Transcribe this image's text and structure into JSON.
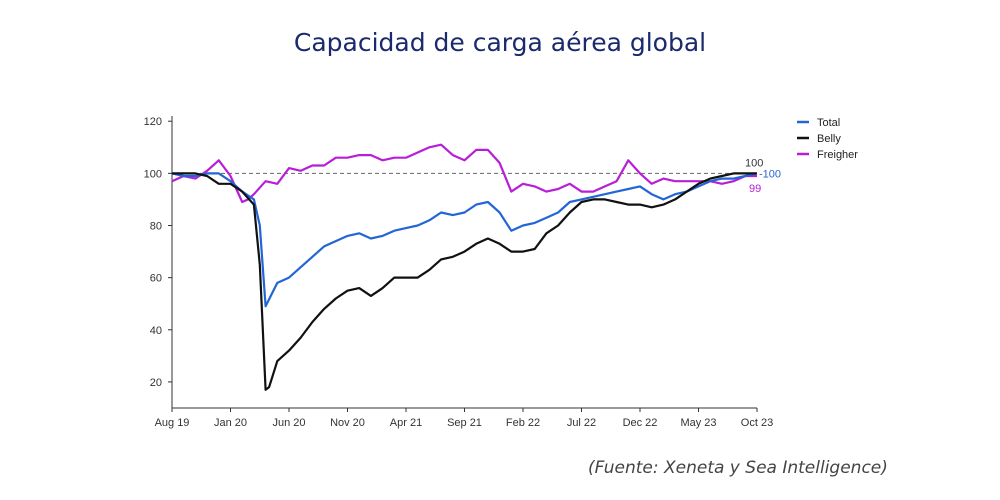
{
  "chart_data": {
    "type": "line",
    "title": "Capacidad de carga aérea global",
    "xlabel": "",
    "ylabel": "",
    "ylim": [
      10,
      122
    ],
    "yticks": [
      20,
      40,
      60,
      80,
      100,
      120
    ],
    "x_tick_labels": [
      "Aug 19",
      "Jan 20",
      "Jun 20",
      "Nov 20",
      "Apr 21",
      "Sep 21",
      "Feb 22",
      "Jul 22",
      "Dec 22",
      "May 23",
      "Oct 23"
    ],
    "x_tick_months": [
      0,
      5,
      10,
      15,
      20,
      25,
      30,
      35,
      40,
      45,
      50
    ],
    "reference_line": 100,
    "grid": false,
    "legend_position": "top-right",
    "series": [
      {
        "name": "Total",
        "color": "#2266d6",
        "x": [
          0,
          1,
          2,
          3,
          4,
          5,
          6,
          7,
          7.5,
          8,
          9,
          10,
          11,
          12,
          13,
          14,
          15,
          16,
          17,
          18,
          19,
          20,
          21,
          22,
          23,
          24,
          25,
          26,
          27,
          28,
          29,
          30,
          31,
          32,
          33,
          34,
          35,
          36,
          37,
          38,
          39,
          40,
          41,
          42,
          43,
          44,
          45,
          46,
          47,
          48,
          49,
          50
        ],
        "values": [
          100,
          99,
          99,
          100,
          100,
          97,
          93,
          90,
          80,
          49,
          58,
          60,
          64,
          68,
          72,
          74,
          76,
          77,
          75,
          76,
          78,
          79,
          80,
          82,
          85,
          84,
          85,
          88,
          89,
          85,
          78,
          80,
          81,
          83,
          85,
          89,
          90,
          91,
          92,
          93,
          94,
          95,
          92,
          90,
          92,
          93,
          95,
          97,
          98,
          98,
          99,
          100
        ]
      },
      {
        "name": "Belly",
        "color": "#111111",
        "x": [
          0,
          1,
          2,
          3,
          4,
          5,
          6,
          7,
          7.5,
          8,
          8.3,
          9,
          10,
          11,
          12,
          13,
          14,
          15,
          16,
          17,
          18,
          19,
          20,
          21,
          22,
          23,
          24,
          25,
          26,
          27,
          28,
          29,
          30,
          31,
          32,
          33,
          34,
          35,
          36,
          37,
          38,
          39,
          40,
          41,
          42,
          43,
          44,
          45,
          46,
          47,
          48,
          49,
          50
        ],
        "values": [
          100,
          100,
          100,
          99,
          96,
          96,
          93,
          88,
          65,
          17,
          18,
          28,
          32,
          37,
          43,
          48,
          52,
          55,
          56,
          53,
          56,
          60,
          60,
          60,
          63,
          67,
          68,
          70,
          73,
          75,
          73,
          70,
          70,
          71,
          77,
          80,
          85,
          89,
          90,
          90,
          89,
          88,
          88,
          87,
          88,
          90,
          93,
          96,
          98,
          99,
          100,
          100,
          100
        ]
      },
      {
        "name": "Freigher",
        "color": "#b81ed8",
        "x": [
          0,
          1,
          2,
          3,
          4,
          5,
          6,
          6.5,
          7,
          8,
          9,
          10,
          11,
          12,
          13,
          14,
          15,
          16,
          17,
          18,
          19,
          20,
          21,
          22,
          23,
          24,
          25,
          26,
          27,
          28,
          29,
          30,
          31,
          32,
          33,
          34,
          35,
          36,
          37,
          38,
          39,
          40,
          41,
          42,
          43,
          44,
          45,
          46,
          47,
          48,
          49,
          50
        ],
        "values": [
          97,
          99,
          98,
          101,
          105,
          99,
          89,
          90,
          92,
          97,
          96,
          102,
          101,
          103,
          103,
          106,
          106,
          107,
          107,
          105,
          106,
          106,
          108,
          110,
          111,
          107,
          105,
          109,
          109,
          104,
          93,
          96,
          95,
          93,
          94,
          96,
          93,
          93,
          95,
          97,
          105,
          100,
          96,
          98,
          97,
          97,
          97,
          97,
          96,
          97,
          99,
          99
        ]
      }
    ],
    "end_labels": [
      {
        "series": "Belly",
        "text": "100"
      },
      {
        "series": "Total",
        "text": "100"
      },
      {
        "series": "Freigher",
        "text": "99"
      }
    ]
  },
  "source_text": "(Fuente: Xeneta y Sea Intelligence)"
}
